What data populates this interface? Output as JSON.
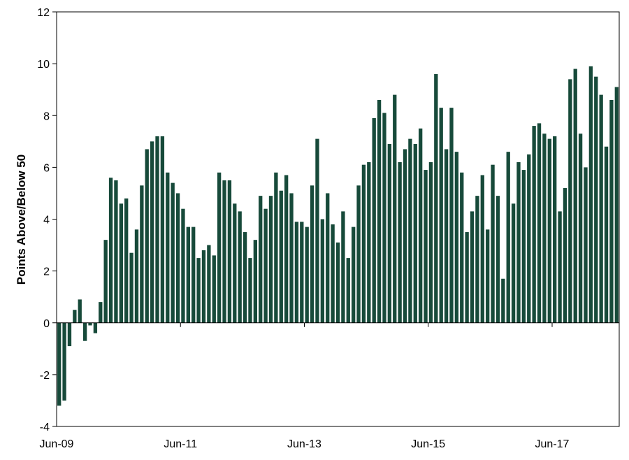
{
  "chart_data": {
    "type": "bar",
    "title": "",
    "xlabel": "",
    "ylabel": "Points Above/Below 50",
    "ylim": [
      -4,
      12
    ],
    "yticks": [
      -4,
      -2,
      0,
      2,
      4,
      6,
      8,
      10,
      12
    ],
    "xtick_labels": [
      "Jun-09",
      "Jun-11",
      "Jun-13",
      "Jun-15",
      "Jun-17"
    ],
    "start_month": "Jun-09",
    "grid": false,
    "legend": "none",
    "bar_color": "#174A3A",
    "series": [
      {
        "values": [
          -3.2,
          -3.0,
          -0.9,
          0.5,
          0.9,
          -0.7,
          -0.1,
          -0.4,
          0.8,
          3.2,
          5.6,
          5.5,
          4.6,
          4.8,
          2.7,
          3.6,
          5.3,
          6.7,
          7.0,
          7.2,
          7.2,
          5.8,
          5.4,
          5.0,
          4.4,
          3.7,
          3.7,
          2.5,
          2.8,
          3.0,
          2.6,
          5.8,
          5.5,
          5.5,
          4.6,
          4.3,
          3.5,
          2.5,
          3.2,
          4.9,
          4.4,
          4.9,
          5.8,
          5.1,
          5.7,
          5.0,
          3.9,
          3.9,
          3.7,
          5.3,
          7.1,
          4.0,
          5.0,
          3.8,
          3.1,
          4.3,
          2.5,
          3.7,
          5.3,
          6.1,
          6.2,
          7.9,
          8.6,
          8.1,
          6.9,
          8.8,
          6.2,
          6.7,
          7.1,
          6.9,
          7.5,
          5.9,
          6.2,
          9.6,
          8.3,
          6.7,
          8.3,
          6.6,
          5.8,
          3.5,
          4.3,
          4.9,
          5.7,
          3.6,
          6.1,
          4.9,
          1.7,
          6.6,
          4.6,
          6.2,
          5.9,
          6.5,
          7.6,
          7.7,
          7.3,
          7.1,
          7.2,
          4.3,
          5.2,
          9.4,
          9.8,
          7.3,
          6.0,
          9.9,
          9.5,
          8.8,
          6.8,
          8.6,
          9.1
        ]
      }
    ]
  }
}
